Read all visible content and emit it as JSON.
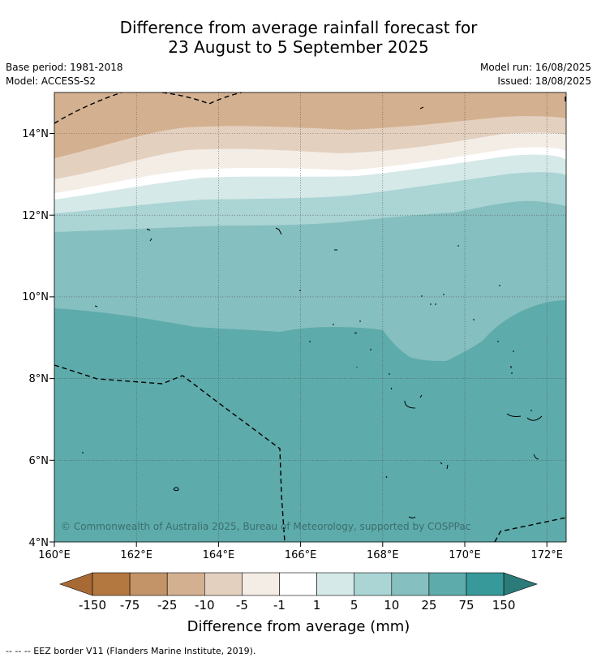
{
  "title_line1": "Difference from average rainfall forecast for",
  "title_line2": "23 August to 5 September 2025",
  "meta_left": [
    "Base period: 1981-2018",
    "Model: ACCESS-S2"
  ],
  "meta_right": [
    "Model run: 16/08/2025",
    "Issued: 18/08/2025"
  ],
  "copyright": "© Commonwealth of Australia 2025, Bureau of Meteorology, supported by COSPPac",
  "x_ticks": [
    "160°E",
    "162°E",
    "164°E",
    "166°E",
    "168°E",
    "170°E",
    "172°E"
  ],
  "y_ticks": [
    "4°N",
    "6°N",
    "8°N",
    "10°N",
    "12°N",
    "14°N"
  ],
  "colorbar": {
    "labels": [
      "-150",
      "-75",
      "-25",
      "-10",
      "-5",
      "-1",
      "1",
      "5",
      "10",
      "25",
      "75",
      "150"
    ],
    "colors": [
      "#a86a35",
      "#b37840",
      "#c29467",
      "#d3b08f",
      "#e4d0bf",
      "#f3ede6",
      "#ffffff",
      "#d5e9e8",
      "#abd4d4",
      "#86bfc0",
      "#5eabab",
      "#379999",
      "#2c7b7b"
    ],
    "title": "Difference from average (mm)"
  },
  "legend_note": "-- -- -- EEZ border V11 (Flanders Marine Institute, 2019).",
  "map_colors": {
    "c_neg25": "#d3b08f",
    "c_neg10": "#e4d0bf",
    "c_neg5": "#f3ede6",
    "c_neg1": "#ffffff",
    "c_pos1": "#d5e9e8",
    "c_pos5": "#abd4d4",
    "c_pos10": "#86bfc0",
    "c_pos25": "#5eabab"
  }
}
